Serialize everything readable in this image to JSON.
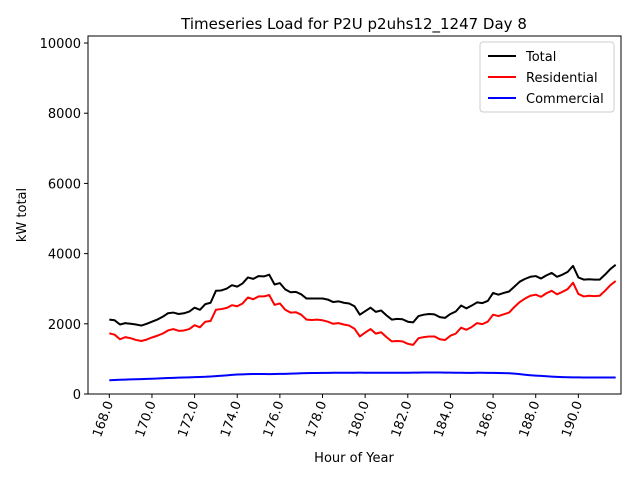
{
  "chart_data": {
    "type": "line",
    "title": "Timeseries Load for P2U p2uhs12_1247  Day 8",
    "xlabel": "Hour of Year",
    "ylabel": "kW total",
    "xlim": [
      167.0,
      192.0
    ],
    "ylim": [
      0,
      10200
    ],
    "xticks": [
      168.0,
      170.0,
      172.0,
      174.0,
      176.0,
      178.0,
      180.0,
      182.0,
      184.0,
      186.0,
      188.0,
      190.0
    ],
    "xtick_labels": [
      "168.0",
      "170.0",
      "172.0",
      "174.0",
      "176.0",
      "178.0",
      "180.0",
      "182.0",
      "184.0",
      "186.0",
      "188.0",
      "190.0"
    ],
    "yticks": [
      0,
      2000,
      4000,
      6000,
      8000,
      10000
    ],
    "ytick_labels": [
      "0",
      "2000",
      "4000",
      "6000",
      "8000",
      "10000"
    ],
    "grid": false,
    "legend_position": "top-right",
    "x_start": 168.0,
    "x_step": 0.25,
    "series": [
      {
        "name": "Total",
        "color": "#000000",
        "values": [
          2120,
          2100,
          1980,
          2020,
          2000,
          1980,
          1950,
          2000,
          2060,
          2120,
          2200,
          2300,
          2320,
          2280,
          2300,
          2350,
          2460,
          2400,
          2560,
          2600,
          2940,
          2950,
          3000,
          3100,
          3060,
          3150,
          3320,
          3280,
          3360,
          3350,
          3400,
          3120,
          3160,
          2980,
          2900,
          2910,
          2840,
          2720,
          2720,
          2720,
          2720,
          2690,
          2620,
          2640,
          2600,
          2580,
          2500,
          2260,
          2360,
          2460,
          2340,
          2380,
          2240,
          2120,
          2140,
          2130,
          2060,
          2040,
          2220,
          2260,
          2280,
          2270,
          2190,
          2170,
          2280,
          2350,
          2520,
          2440,
          2520,
          2610,
          2590,
          2650,
          2880,
          2830,
          2880,
          2920,
          3060,
          3200,
          3280,
          3340,
          3360,
          3290,
          3380,
          3450,
          3340,
          3400,
          3480,
          3650,
          3320,
          3260,
          3270,
          3260,
          3260,
          3400,
          3560,
          3680
        ]
      },
      {
        "name": "Residential",
        "color": "#ff0000",
        "values": [
          1730,
          1690,
          1560,
          1620,
          1590,
          1540,
          1510,
          1550,
          1610,
          1660,
          1720,
          1810,
          1850,
          1800,
          1810,
          1850,
          1960,
          1900,
          2060,
          2080,
          2400,
          2420,
          2450,
          2530,
          2500,
          2580,
          2750,
          2700,
          2780,
          2780,
          2820,
          2540,
          2580,
          2400,
          2320,
          2330,
          2260,
          2120,
          2110,
          2120,
          2100,
          2060,
          2000,
          2020,
          1980,
          1950,
          1860,
          1640,
          1750,
          1850,
          1720,
          1760,
          1620,
          1500,
          1510,
          1500,
          1430,
          1400,
          1590,
          1620,
          1640,
          1640,
          1560,
          1540,
          1660,
          1720,
          1890,
          1830,
          1910,
          2020,
          1990,
          2060,
          2260,
          2220,
          2270,
          2320,
          2480,
          2620,
          2720,
          2800,
          2830,
          2770,
          2870,
          2940,
          2840,
          2910,
          2990,
          3170,
          2850,
          2780,
          2800,
          2790,
          2800,
          2940,
          3100,
          3220
        ]
      },
      {
        "name": "Commercial",
        "color": "#0000ff",
        "values": [
          390,
          400,
          405,
          410,
          415,
          420,
          425,
          430,
          435,
          440,
          450,
          455,
          460,
          465,
          470,
          475,
          480,
          485,
          490,
          500,
          510,
          520,
          530,
          545,
          555,
          560,
          565,
          570,
          570,
          568,
          565,
          568,
          572,
          575,
          580,
          585,
          590,
          595,
          598,
          600,
          602,
          603,
          604,
          605,
          605,
          606,
          607,
          608,
          607,
          606,
          605,
          604,
          604,
          605,
          606,
          607,
          607,
          608,
          610,
          611,
          612,
          612,
          611,
          610,
          608,
          606,
          604,
          603,
          603,
          604,
          604,
          603,
          601,
          598,
          594,
          590,
          580,
          565,
          550,
          535,
          525,
          515,
          505,
          495,
          488,
          482,
          477,
          474,
          472,
          470,
          470,
          470,
          470,
          470,
          470,
          470
        ]
      }
    ]
  }
}
